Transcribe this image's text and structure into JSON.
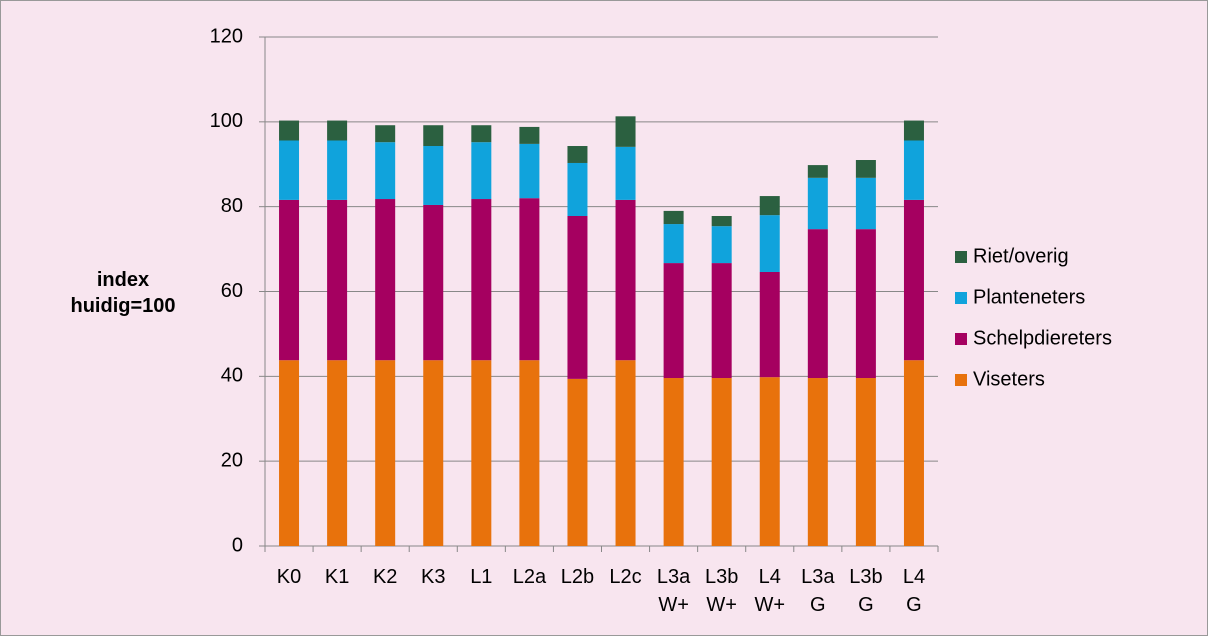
{
  "chart_data": {
    "type": "stacked_bar",
    "y_label": "index huidig=100",
    "categories": [
      "K0",
      "K1",
      "K2",
      "K3",
      "L1",
      "L2a",
      "L2b",
      "L2c",
      "L3a W+",
      "L3b W+",
      "L4 W+",
      "L3a G",
      "L3b G",
      "L4 G"
    ],
    "series": [
      {
        "name": "Viseters",
        "color": "#e8720c",
        "values": [
          43.8,
          43.8,
          43.8,
          43.8,
          43.8,
          43.8,
          39.4,
          43.8,
          39.6,
          39.6,
          39.8,
          39.6,
          39.6,
          43.8
        ]
      },
      {
        "name": "Schelpdiereters",
        "color": "#a50060",
        "values": [
          37.8,
          37.8,
          38,
          36.6,
          38,
          38.2,
          38.4,
          37.8,
          27.1,
          27.1,
          24.8,
          35.1,
          35.1,
          37.8
        ]
      },
      {
        "name": "Planteneters",
        "color": "#10a3dc",
        "values": [
          14,
          14,
          13.4,
          13.9,
          13.4,
          12.8,
          12.5,
          12.5,
          9.2,
          8.7,
          13.4,
          12.1,
          12.1,
          14
        ]
      },
      {
        "name": "Riet/overig",
        "color": "#2b6040",
        "values": [
          4.7,
          4.7,
          4,
          4.9,
          4,
          4,
          4,
          7.2,
          3.1,
          2.4,
          4.5,
          3,
          4.2,
          4.7
        ]
      }
    ],
    "ylim": [
      0,
      120
    ],
    "yticks": [
      0,
      20,
      40,
      60,
      80,
      100,
      120
    ],
    "grid": true,
    "legend": "right"
  }
}
